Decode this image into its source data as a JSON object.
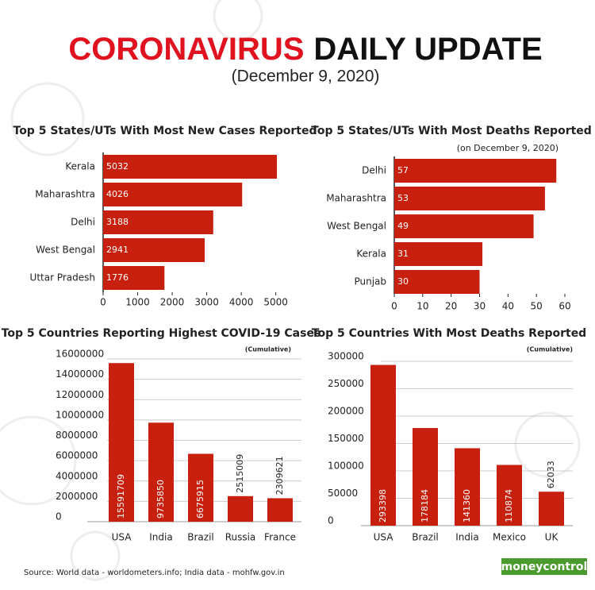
{
  "header": {
    "title_red": "CORONAVIRUS",
    "title_black": "DAILY UPDATE",
    "date": "(December 9, 2020)"
  },
  "chart_data": [
    {
      "type": "bar",
      "orientation": "horizontal",
      "title": "Top 5 States/UTs With Most New Cases Reported",
      "categories": [
        "Kerala",
        "Maharashtra",
        "Delhi",
        "West Bengal",
        "Uttar Pradesh"
      ],
      "values": [
        5032,
        4026,
        3188,
        2941,
        1776
      ],
      "color": "#c8200f",
      "xlim": [
        0,
        5100
      ],
      "xticks": [
        0,
        1000,
        2000,
        3000,
        4000,
        5000
      ],
      "grid": false
    },
    {
      "type": "bar",
      "orientation": "horizontal",
      "title": "Top 5 States/UTs With Most Deaths Reported",
      "subtitle": "(on December 9, 2020)",
      "categories": [
        "Delhi",
        "Maharashtra",
        "West Bengal",
        "Kerala",
        "Punjab"
      ],
      "values": [
        57,
        53,
        49,
        31,
        30
      ],
      "color": "#c8200f",
      "xlim": [
        0,
        60
      ],
      "xticks": [
        0,
        10,
        20,
        30,
        40,
        50,
        60
      ],
      "grid": false
    },
    {
      "type": "bar",
      "orientation": "vertical",
      "title": "Top 5 Countries Reporting Highest COVID-19 Cases",
      "subtitle": "(Cumulative)",
      "categories": [
        "USA",
        "India",
        "Brazil",
        "Russia",
        "France"
      ],
      "values": [
        15591709,
        9735850,
        6675915,
        2515009,
        2309621
      ],
      "color": "#c8200f",
      "ylim": [
        0,
        16000000
      ],
      "yticks": [
        0,
        2000000,
        4000000,
        6000000,
        8000000,
        10000000,
        12000000,
        14000000,
        16000000
      ],
      "grid": true
    },
    {
      "type": "bar",
      "orientation": "vertical",
      "title": "Top 5 Countries With Most Deaths Reported",
      "subtitle": "(Cumulative)",
      "categories": [
        "USA",
        "Brazil",
        "India",
        "Mexico",
        "UK"
      ],
      "values": [
        293398,
        178184,
        141360,
        110874,
        62033
      ],
      "color": "#c8200f",
      "ylim": [
        0,
        300000
      ],
      "yticks": [
        0,
        50000,
        100000,
        150000,
        200000,
        250000,
        300000
      ],
      "grid": true
    }
  ],
  "footer": {
    "source": "Source: World data - worldometers.info; India data - mohfw.gov.in",
    "logo": "moneycontrol"
  }
}
